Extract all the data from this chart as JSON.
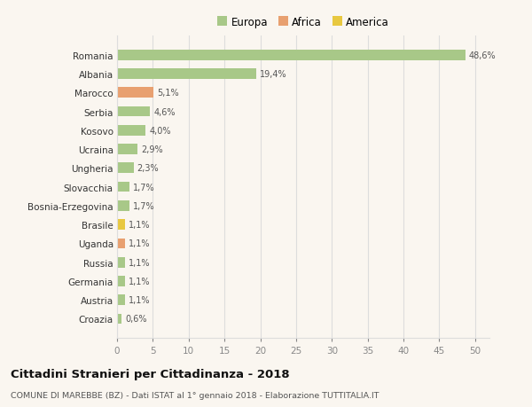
{
  "categories": [
    "Croazia",
    "Austria",
    "Germania",
    "Russia",
    "Uganda",
    "Brasile",
    "Bosnia-Erzegovina",
    "Slovacchia",
    "Ungheria",
    "Ucraina",
    "Kosovo",
    "Serbia",
    "Marocco",
    "Albania",
    "Romania"
  ],
  "values": [
    0.6,
    1.1,
    1.1,
    1.1,
    1.1,
    1.1,
    1.7,
    1.7,
    2.3,
    2.9,
    4.0,
    4.6,
    5.1,
    19.4,
    48.6
  ],
  "labels": [
    "0,6%",
    "1,1%",
    "1,1%",
    "1,1%",
    "1,1%",
    "1,1%",
    "1,7%",
    "1,7%",
    "2,3%",
    "2,9%",
    "4,0%",
    "4,6%",
    "5,1%",
    "19,4%",
    "48,6%"
  ],
  "colors": [
    "#a8c888",
    "#a8c888",
    "#a8c888",
    "#a8c888",
    "#e8a070",
    "#e8c840",
    "#a8c888",
    "#a8c888",
    "#a8c888",
    "#a8c888",
    "#a8c888",
    "#a8c888",
    "#e8a070",
    "#a8c888",
    "#a8c888"
  ],
  "legend": [
    {
      "label": "Europa",
      "color": "#a8c888"
    },
    {
      "label": "Africa",
      "color": "#e8a070"
    },
    {
      "label": "America",
      "color": "#e8c840"
    }
  ],
  "xlim": [
    0,
    52
  ],
  "xticks": [
    0,
    5,
    10,
    15,
    20,
    25,
    30,
    35,
    40,
    45,
    50
  ],
  "title": "Cittadini Stranieri per Cittadinanza - 2018",
  "subtitle": "COMUNE DI MAREBBE (BZ) - Dati ISTAT al 1° gennaio 2018 - Elaborazione TUTTITALIA.IT",
  "bg_color": "#faf6f0",
  "grid_color": "#dddddd",
  "bar_height": 0.55
}
